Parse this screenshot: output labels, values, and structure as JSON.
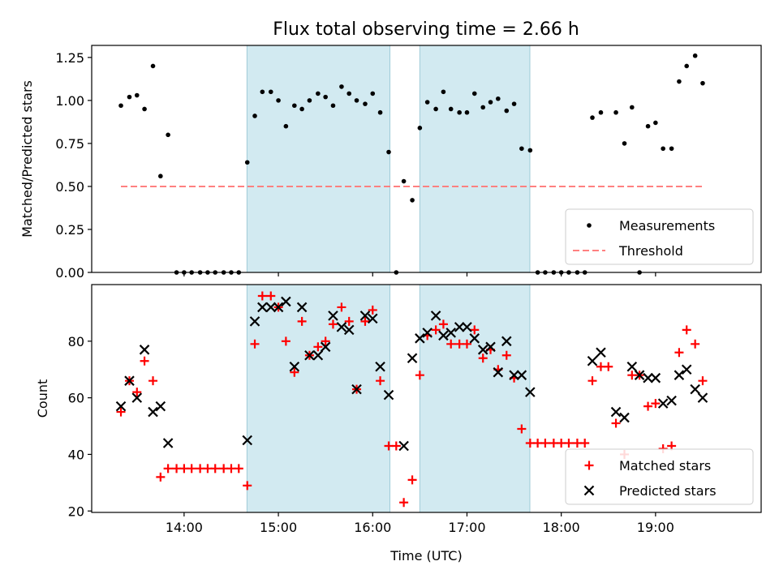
{
  "title": "Flux total observing time = 2.66 h",
  "chart_data": [
    {
      "type": "scatter",
      "panel": "top",
      "ylabel": "Matched/Predicted stars",
      "xlabel": "",
      "ylim": [
        0,
        1.32
      ],
      "yticks": [
        0,
        0.25,
        0.5,
        0.75,
        1.0,
        1.25
      ],
      "ytick_labels": [
        "0.00",
        "0.25",
        "0.50",
        "0.75",
        "1.00",
        "1.25"
      ],
      "x_unit": "hours UTC",
      "xlim": [
        13.02,
        20.12
      ],
      "xticks": [
        14,
        15,
        16,
        17,
        18,
        19
      ],
      "shaded_intervals": [
        [
          14.667,
          16.183
        ],
        [
          16.5,
          17.667
        ]
      ],
      "threshold": {
        "value": 0.5,
        "x_range": [
          13.33,
          19.5
        ]
      },
      "legend": {
        "position": "lower-right",
        "entries": [
          "Measurements",
          "Threshold"
        ]
      },
      "series": [
        {
          "name": "Measurements",
          "x": [
            13.33,
            13.42,
            13.5,
            13.58,
            13.67,
            13.75,
            13.83,
            13.92,
            14.0,
            14.08,
            14.17,
            14.25,
            14.33,
            14.42,
            14.5,
            14.58,
            14.67,
            14.75,
            14.83,
            14.92,
            15.0,
            15.08,
            15.17,
            15.25,
            15.33,
            15.42,
            15.5,
            15.58,
            15.67,
            15.75,
            15.83,
            15.92,
            16.0,
            16.08,
            16.17,
            16.25,
            16.33,
            16.42,
            16.5,
            16.58,
            16.67,
            16.75,
            16.83,
            16.92,
            17.0,
            17.08,
            17.17,
            17.25,
            17.33,
            17.42,
            17.5,
            17.58,
            17.67,
            17.75,
            17.83,
            17.92,
            18.0,
            18.08,
            18.17,
            18.25,
            18.33,
            18.42,
            18.58,
            18.67,
            18.75,
            18.83,
            18.92,
            19.0,
            19.08,
            19.17,
            19.25,
            19.33,
            19.42,
            19.5
          ],
          "y": [
            0.97,
            1.02,
            1.03,
            0.95,
            1.2,
            0.56,
            0.8,
            0.0,
            0.0,
            0.0,
            0.0,
            0.0,
            0.0,
            0.0,
            0.0,
            0.0,
            0.64,
            0.91,
            1.05,
            1.05,
            1.0,
            0.85,
            0.97,
            0.95,
            1.0,
            1.04,
            1.02,
            0.97,
            1.08,
            1.04,
            1.0,
            0.98,
            1.04,
            0.93,
            0.7,
            0.0,
            0.53,
            0.42,
            0.84,
            0.99,
            0.95,
            1.05,
            0.95,
            0.93,
            0.93,
            1.04,
            0.96,
            0.99,
            1.01,
            0.94,
            0.98,
            0.72,
            0.71,
            0.0,
            0.0,
            0.0,
            0.0,
            0.0,
            0.0,
            0.0,
            0.9,
            0.93,
            0.93,
            0.75,
            0.96,
            0.0,
            0.85,
            0.87,
            0.72,
            0.72,
            1.11,
            1.2,
            1.26,
            1.1
          ]
        }
      ]
    },
    {
      "type": "scatter",
      "panel": "bottom",
      "ylabel": "Count",
      "xlabel": "Time (UTC)",
      "ylim": [
        19.5,
        100
      ],
      "yticks": [
        20,
        40,
        60,
        80
      ],
      "ytick_labels": [
        "20",
        "40",
        "60",
        "80"
      ],
      "x_unit": "hours UTC",
      "xlim": [
        13.02,
        20.12
      ],
      "xticks": [
        14,
        15,
        16,
        17,
        18,
        19
      ],
      "xtick_labels": [
        "14:00",
        "15:00",
        "16:00",
        "17:00",
        "18:00",
        "19:00"
      ],
      "shaded_intervals": [
        [
          14.667,
          16.183
        ],
        [
          16.5,
          17.667
        ]
      ],
      "legend": {
        "position": "lower-right",
        "entries": [
          "Matched stars",
          "Predicted stars"
        ]
      },
      "series": [
        {
          "name": "Matched stars",
          "color": "#ff0000",
          "marker": "plus",
          "x": [
            13.33,
            13.42,
            13.5,
            13.58,
            13.67,
            13.75,
            13.83,
            13.92,
            14.0,
            14.08,
            14.17,
            14.25,
            14.33,
            14.42,
            14.5,
            14.58,
            14.67,
            14.75,
            14.83,
            14.92,
            15.0,
            15.08,
            15.17,
            15.25,
            15.33,
            15.42,
            15.5,
            15.58,
            15.67,
            15.75,
            15.83,
            15.92,
            16.0,
            16.08,
            16.17,
            16.25,
            16.33,
            16.42,
            16.5,
            16.58,
            16.67,
            16.75,
            16.83,
            16.92,
            17.0,
            17.08,
            17.17,
            17.25,
            17.33,
            17.42,
            17.5,
            17.58,
            17.67,
            17.75,
            17.83,
            17.92,
            18.0,
            18.08,
            18.17,
            18.25,
            18.33,
            18.42,
            18.5,
            18.58,
            18.67,
            18.75,
            18.83,
            18.92,
            19.0,
            19.08,
            19.17,
            19.25,
            19.33,
            19.42,
            19.5
          ],
          "y": [
            55,
            66,
            62,
            73,
            66,
            32,
            35,
            35,
            35,
            35,
            35,
            35,
            35,
            35,
            35,
            35,
            29,
            79,
            96,
            96,
            92,
            80,
            69,
            87,
            75,
            78,
            80,
            86,
            92,
            87,
            63,
            87,
            91,
            66,
            43,
            43,
            23,
            31,
            68,
            82,
            84,
            86,
            79,
            79,
            79,
            84,
            74,
            77,
            70,
            75,
            67,
            49,
            44,
            44,
            44,
            44,
            44,
            44,
            44,
            44,
            66,
            71,
            71,
            51,
            40,
            68,
            68,
            57,
            58,
            42,
            43,
            76,
            84,
            79,
            66
          ]
        },
        {
          "name": "Predicted stars",
          "color": "#000000",
          "marker": "x",
          "x": [
            13.33,
            13.42,
            13.5,
            13.58,
            13.67,
            13.75,
            13.83,
            14.67,
            14.75,
            14.83,
            14.92,
            15.0,
            15.08,
            15.17,
            15.25,
            15.33,
            15.42,
            15.5,
            15.58,
            15.67,
            15.75,
            15.83,
            15.92,
            16.0,
            16.08,
            16.17,
            16.33,
            16.42,
            16.5,
            16.58,
            16.67,
            16.75,
            16.83,
            16.92,
            17.0,
            17.08,
            17.17,
            17.25,
            17.33,
            17.42,
            17.5,
            17.58,
            17.67,
            18.33,
            18.42,
            18.58,
            18.67,
            18.75,
            18.83,
            18.92,
            19.0,
            19.08,
            19.17,
            19.25,
            19.33,
            19.42,
            19.5
          ],
          "y": [
            57,
            66,
            60,
            77,
            55,
            57,
            44,
            45,
            87,
            92,
            92,
            92,
            94,
            71,
            92,
            75,
            75,
            78,
            89,
            85,
            84,
            63,
            89,
            88,
            71,
            61,
            43,
            74,
            81,
            83,
            89,
            82,
            83,
            85,
            85,
            81,
            77,
            78,
            69,
            80,
            68,
            68,
            62,
            73,
            76,
            55,
            53,
            71,
            68,
            67,
            67,
            58,
            59,
            68,
            70,
            63,
            60
          ]
        }
      ]
    }
  ]
}
